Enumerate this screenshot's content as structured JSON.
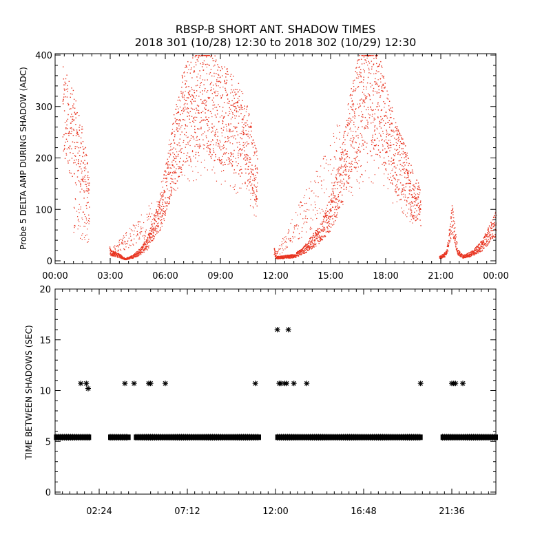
{
  "title": {
    "line1": "RBSP-B SHORT ANT. SHADOW TIMES",
    "line2": "2018 301 (10/28) 12:30 to 2018 302 (10/29) 12:30"
  },
  "chart_data": [
    {
      "type": "scatter",
      "ylabel": "Probe 5 DELTA AMP DURING SHADOW (ADC)",
      "xlabel": "",
      "xlim": [
        0,
        24
      ],
      "ylim": [
        0,
        400
      ],
      "x_ticks": [
        {
          "value": 0,
          "label": "00:00"
        },
        {
          "value": 3,
          "label": "03:00"
        },
        {
          "value": 6,
          "label": "06:00"
        },
        {
          "value": 9,
          "label": "09:00"
        },
        {
          "value": 12,
          "label": "12:00"
        },
        {
          "value": 15,
          "label": "15:00"
        },
        {
          "value": 18,
          "label": "18:00"
        },
        {
          "value": 21,
          "label": "21:00"
        },
        {
          "value": 24,
          "label": "00:00"
        }
      ],
      "y_ticks": [
        0,
        100,
        200,
        300,
        400
      ],
      "marker_color": "#e8321e",
      "envelope": {
        "x": [
          0.4,
          0.8,
          1.2,
          1.6,
          1.8,
          3.0,
          3.5,
          3.8,
          4.2,
          4.6,
          5.0,
          5.3,
          5.7,
          6.0,
          6.5,
          7.0,
          7.5,
          8.0,
          8.5,
          9.0,
          9.5,
          10.0,
          10.5,
          10.9,
          12.0,
          12.5,
          13.0,
          13.5,
          14.0,
          14.5,
          15.0,
          15.5,
          16.0,
          16.5,
          17.0,
          17.5,
          18.0,
          18.5,
          19.0,
          19.5,
          19.8,
          20.5,
          21.0,
          21.3,
          21.6,
          21.9,
          22.2,
          22.7,
          23.2,
          23.6,
          24.0
        ],
        "y": [
          330,
          310,
          260,
          210,
          150,
          20,
          12,
          5,
          10,
          22,
          40,
          70,
          110,
          170,
          260,
          330,
          360,
          380,
          360,
          340,
          320,
          300,
          260,
          200,
          8,
          10,
          12,
          25,
          45,
          70,
          110,
          180,
          280,
          350,
          380,
          370,
          300,
          240,
          200,
          150,
          130,
          8,
          10,
          18,
          100,
          20,
          10,
          18,
          35,
          60,
          85
        ]
      },
      "scatter_band": {
        "x": [
          1.0,
          3.0,
          5.5,
          6.0,
          6.5,
          7.0,
          7.5,
          8.0,
          8.5,
          9.0,
          9.5,
          10.0,
          10.5,
          12.0,
          16.0,
          16.5,
          17.0,
          17.5,
          18.0,
          18.5,
          19.0,
          19.5
        ],
        "y": [
          120,
          20,
          120,
          200,
          280,
          340,
          380,
          400,
          380,
          360,
          340,
          320,
          280,
          15,
          300,
          350,
          380,
          370,
          310,
          260,
          220,
          170
        ]
      }
    },
    {
      "type": "scatter",
      "ylabel": "TIME BETWEEN SHADOWS (SEC)",
      "xlabel": "",
      "xlim": [
        0,
        24
      ],
      "ylim": [
        0,
        20
      ],
      "x_ticks": [
        {
          "value": 2.4,
          "label": "02:24"
        },
        {
          "value": 7.2,
          "label": "07:12"
        },
        {
          "value": 12.0,
          "label": "12:00"
        },
        {
          "value": 16.8,
          "label": "16:48"
        },
        {
          "value": 21.6,
          "label": "21:36"
        }
      ],
      "y_ticks": [
        0,
        5,
        10,
        15,
        20
      ],
      "marker": "*",
      "marker_color": "#000000",
      "baseline": {
        "y": 5.4,
        "segments": [
          [
            0.05,
            1.85
          ],
          [
            3.0,
            4.0
          ],
          [
            4.4,
            11.1
          ],
          [
            12.1,
            19.9
          ],
          [
            21.1,
            24.0
          ]
        ]
      },
      "outliers": {
        "x": [
          1.4,
          1.7,
          1.8,
          3.8,
          4.3,
          5.1,
          5.2,
          6.0,
          10.9,
          12.1,
          12.2,
          12.3,
          12.5,
          12.6,
          12.7,
          13.0,
          13.7,
          19.9,
          21.6,
          21.7,
          21.8,
          22.2
        ],
        "y": [
          10.7,
          10.7,
          10.2,
          10.7,
          10.7,
          10.7,
          10.7,
          10.7,
          10.7,
          16.0,
          10.7,
          10.7,
          10.7,
          10.7,
          16.0,
          10.7,
          10.7,
          10.7,
          10.7,
          10.7,
          10.7,
          10.7
        ]
      }
    }
  ]
}
